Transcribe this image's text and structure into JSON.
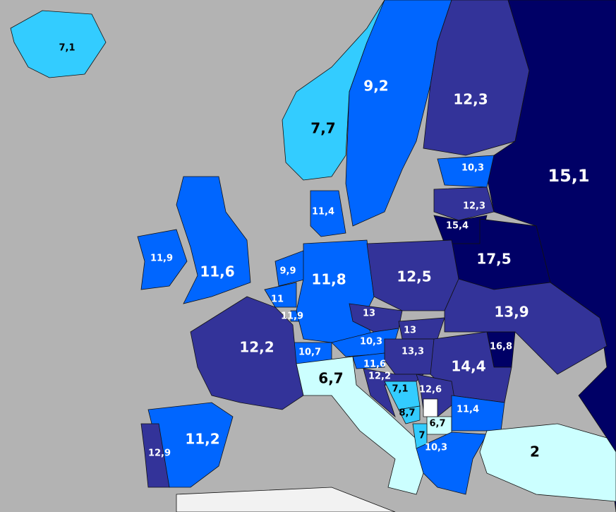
{
  "regions": [
    {
      "label": "7,1",
      "color": "#33ccff"
    },
    {
      "label": "7,7",
      "color": "#33ccff"
    },
    {
      "label": "9,2",
      "color": "#0066ff"
    },
    {
      "label": "12,3",
      "color": "#333399"
    },
    {
      "label": "15,1",
      "color": "#000066"
    },
    {
      "label": "10,3",
      "color": "#0066ff"
    },
    {
      "label": "12,3",
      "color": "#333399"
    },
    {
      "label": "15,4",
      "color": "#000066"
    },
    {
      "label": "17,5",
      "color": "#000066"
    },
    {
      "label": "11,4",
      "color": "#0066ff"
    },
    {
      "label": "11,9",
      "color": "#0066ff"
    },
    {
      "label": "11,6",
      "color": "#0066ff"
    },
    {
      "label": "9,9",
      "color": "#0066ff"
    },
    {
      "label": "11",
      "color": "#0066ff"
    },
    {
      "label": "11,9",
      "color": "#0066ff"
    },
    {
      "label": "11,8",
      "color": "#0066ff"
    },
    {
      "label": "12,5",
      "color": "#333399"
    },
    {
      "label": "13",
      "color": "#333399"
    },
    {
      "label": "13",
      "color": "#333399"
    },
    {
      "label": "13,9",
      "color": "#333399"
    },
    {
      "label": "10,3",
      "color": "#0066ff"
    },
    {
      "label": "13,3",
      "color": "#333399"
    },
    {
      "label": "16,8",
      "color": "#000066"
    },
    {
      "label": "14,4",
      "color": "#333399"
    },
    {
      "label": "10,7",
      "color": "#0066ff"
    },
    {
      "label": "12,2",
      "color": "#333399"
    },
    {
      "label": "11,6",
      "color": "#0066ff"
    },
    {
      "label": "12,2",
      "color": "#333399"
    },
    {
      "label": "6,7",
      "color": "#ccffff"
    },
    {
      "label": "7,1",
      "color": "#33ccff"
    },
    {
      "label": "12,6",
      "color": "#333399"
    },
    {
      "label": "8,7",
      "color": "#33ccff"
    },
    {
      "label": "6,7",
      "color": "#ccffff"
    },
    {
      "label": "11,4",
      "color": "#0066ff"
    },
    {
      "label": "7",
      "color": "#33ccff"
    },
    {
      "label": "10,3",
      "color": "#0066ff"
    },
    {
      "label": "2",
      "color": "#ccffff"
    },
    {
      "label": "11,2",
      "color": "#0066ff"
    },
    {
      "label": "12,9",
      "color": "#333399"
    }
  ]
}
